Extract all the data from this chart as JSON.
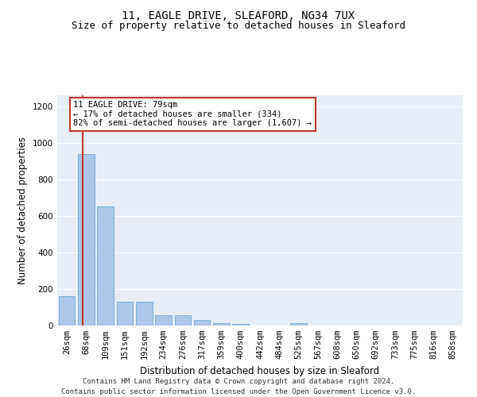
{
  "title_line1": "11, EAGLE DRIVE, SLEAFORD, NG34 7UX",
  "title_line2": "Size of property relative to detached houses in Sleaford",
  "xlabel": "Distribution of detached houses by size in Sleaford",
  "ylabel": "Number of detached properties",
  "categories": [
    "26sqm",
    "68sqm",
    "109sqm",
    "151sqm",
    "192sqm",
    "234sqm",
    "276sqm",
    "317sqm",
    "359sqm",
    "400sqm",
    "442sqm",
    "484sqm",
    "525sqm",
    "567sqm",
    "608sqm",
    "650sqm",
    "692sqm",
    "733sqm",
    "775sqm",
    "816sqm",
    "858sqm"
  ],
  "values": [
    160,
    940,
    650,
    130,
    130,
    55,
    55,
    30,
    15,
    10,
    0,
    0,
    15,
    0,
    0,
    0,
    0,
    0,
    0,
    0,
    0
  ],
  "bar_color": "#aec6e8",
  "bar_edge_color": "#6aaad4",
  "highlight_color": "#c0392b",
  "annotation_text": "11 EAGLE DRIVE: 79sqm\n← 17% of detached houses are smaller (334)\n82% of semi-detached houses are larger (1,607) →",
  "annotation_box_color": "#ffffff",
  "annotation_box_edge": "#c0392b",
  "ylim": [
    0,
    1260
  ],
  "yticks": [
    0,
    200,
    400,
    600,
    800,
    1000,
    1200
  ],
  "background_color": "#e8eef8",
  "grid_color": "#ffffff",
  "footer_line1": "Contains HM Land Registry data © Crown copyright and database right 2024.",
  "footer_line2": "Contains public sector information licensed under the Open Government Licence v3.0.",
  "title_fontsize": 10,
  "subtitle_fontsize": 9,
  "axis_label_fontsize": 8.5,
  "tick_fontsize": 7.5,
  "annotation_fontsize": 7.5,
  "footer_fontsize": 6.5
}
